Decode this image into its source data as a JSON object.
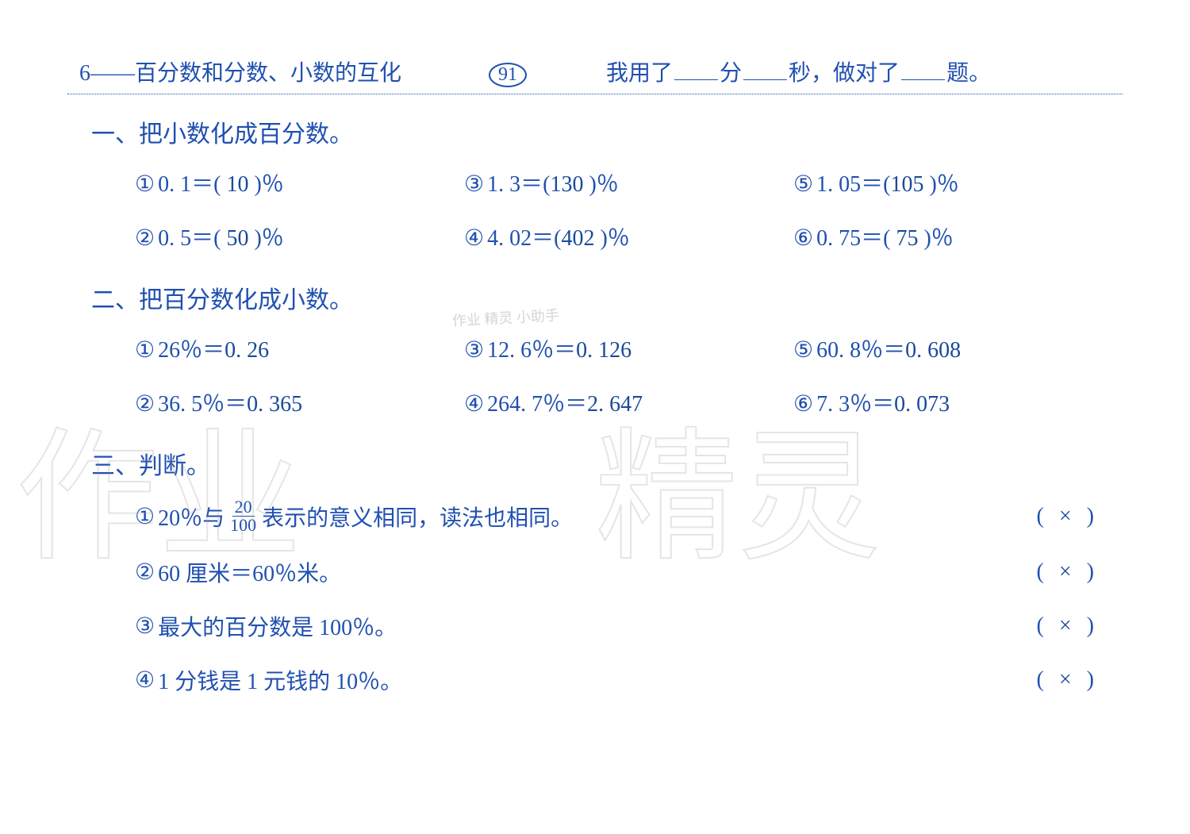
{
  "header": {
    "title": "6——百分数和分数、小数的互化",
    "page_number": "91",
    "right_prefix": "我用了",
    "minute_label": "分",
    "second_label": "秒，做对了",
    "suffix": "题。"
  },
  "section1": {
    "title": "一、把小数化成百分数。",
    "items": [
      {
        "marker": "①",
        "lhs": "0. 1＝(",
        "ans": " 10 ",
        "rhs": ")％"
      },
      {
        "marker": "③",
        "lhs": "1. 3＝(",
        "ans": "130 ",
        "rhs": ")％"
      },
      {
        "marker": "⑤",
        "lhs": "1. 05＝(",
        "ans": "105 ",
        "rhs": ")％"
      },
      {
        "marker": "②",
        "lhs": "0. 5＝(",
        "ans": " 50 ",
        "rhs": ")％"
      },
      {
        "marker": "④",
        "lhs": "4. 02＝(",
        "ans": "402 ",
        "rhs": ")％"
      },
      {
        "marker": "⑥",
        "lhs": "0. 75＝(",
        "ans": " 75 ",
        "rhs": ")％"
      }
    ]
  },
  "section2": {
    "title": "二、把百分数化成小数。",
    "items": [
      {
        "marker": "①",
        "lhs": "26％＝",
        "ans": "0. 26"
      },
      {
        "marker": "③",
        "lhs": "12. 6％＝",
        "ans": "0. 126"
      },
      {
        "marker": "⑤",
        "lhs": "60. 8％＝",
        "ans": "0. 608"
      },
      {
        "marker": "②",
        "lhs": "36. 5％＝",
        "ans": "0. 365"
      },
      {
        "marker": "④",
        "lhs": "264. 7％＝",
        "ans": "2. 647"
      },
      {
        "marker": "⑥",
        "lhs": "7. 3％＝",
        "ans": "0. 073"
      }
    ]
  },
  "section3": {
    "title": "三、判断。",
    "items": [
      {
        "marker": "①",
        "text_before": "20％与",
        "frac_num": "20",
        "frac_den": "100",
        "text_after": "表示的意义相同，读法也相同。",
        "answer": "×"
      },
      {
        "marker": "②",
        "text": "60 厘米＝60％米。",
        "answer": "×"
      },
      {
        "marker": "③",
        "text": "最大的百分数是 100％。",
        "answer": "×"
      },
      {
        "marker": "④",
        "text": "1 分钱是 1 元钱的 10％。",
        "answer": "×"
      }
    ]
  },
  "watermark": {
    "char1": "作业",
    "char2": "精灵",
    "small": "作业\n精灵\n小助手"
  },
  "colors": {
    "text": "#2050b0",
    "background": "#ffffff"
  }
}
